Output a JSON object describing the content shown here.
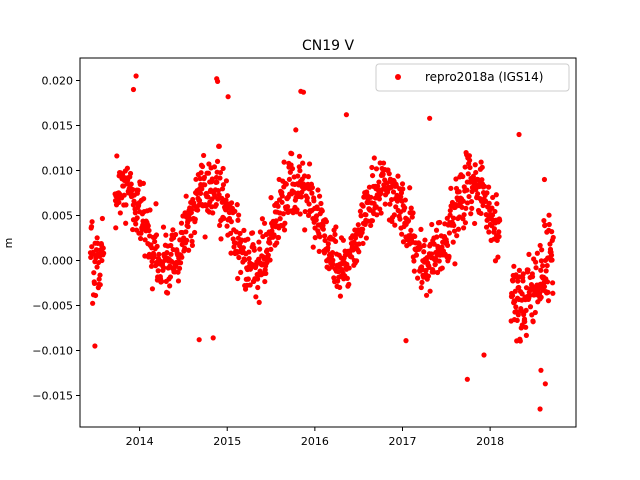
{
  "chart_data": {
    "type": "scatter",
    "title": "CN19 V",
    "xlabel": "",
    "ylabel": "m",
    "xlim": [
      2013.32,
      2018.98
    ],
    "ylim": [
      -0.0185,
      0.0225
    ],
    "xticks": [
      2014,
      2015,
      2016,
      2017,
      2018
    ],
    "xtick_labels": [
      "2014",
      "2015",
      "2016",
      "2017",
      "2018"
    ],
    "yticks": [
      -0.015,
      -0.01,
      -0.005,
      0.0,
      0.005,
      0.01,
      0.015,
      0.02
    ],
    "ytick_labels": [
      "−0.015",
      "−0.010",
      "−0.005",
      "0.000",
      "0.005",
      "0.010",
      "0.015",
      "0.020"
    ],
    "grid": false,
    "legend_position": "top-right",
    "color": "#ff0000",
    "marker": "circle",
    "series": [
      {
        "name": "repro2018a (IGS14)",
        "segments": [
          {
            "x_start": 2013.44,
            "x_end": 2013.59,
            "n": 40,
            "base": 0.0005,
            "slope": 0.0,
            "amp": 0.0,
            "noise": 0.004
          },
          {
            "x_start": 2013.72,
            "x_end": 2018.11,
            "n": 1100,
            "base": 0.004,
            "slope": 0.0,
            "amp": 0.0045,
            "noise": 0.0035
          },
          {
            "x_start": 2018.24,
            "x_end": 2018.72,
            "n": 140,
            "base": 0.0,
            "slope": -0.006,
            "amp": 0.004,
            "noise": 0.0045
          }
        ],
        "extremes": [
          [
            2013.49,
            -0.0095
          ],
          [
            2013.96,
            0.0205
          ],
          [
            2013.93,
            0.019
          ],
          [
            2014.88,
            0.0202
          ],
          [
            2014.89,
            0.0199
          ],
          [
            2015.01,
            0.0182
          ],
          [
            2015.84,
            0.0188
          ],
          [
            2015.87,
            0.0187
          ],
          [
            2016.36,
            0.0162
          ],
          [
            2017.31,
            0.0158
          ],
          [
            2017.74,
            -0.0132
          ],
          [
            2017.93,
            -0.0105
          ],
          [
            2018.57,
            -0.0165
          ],
          [
            2018.63,
            -0.0137
          ],
          [
            2018.58,
            -0.0122
          ],
          [
            2014.68,
            -0.0088
          ],
          [
            2014.84,
            -0.0086
          ],
          [
            2017.04,
            -0.0089
          ],
          [
            2018.33,
            0.014
          ],
          [
            2018.62,
            0.009
          ]
        ]
      }
    ]
  }
}
